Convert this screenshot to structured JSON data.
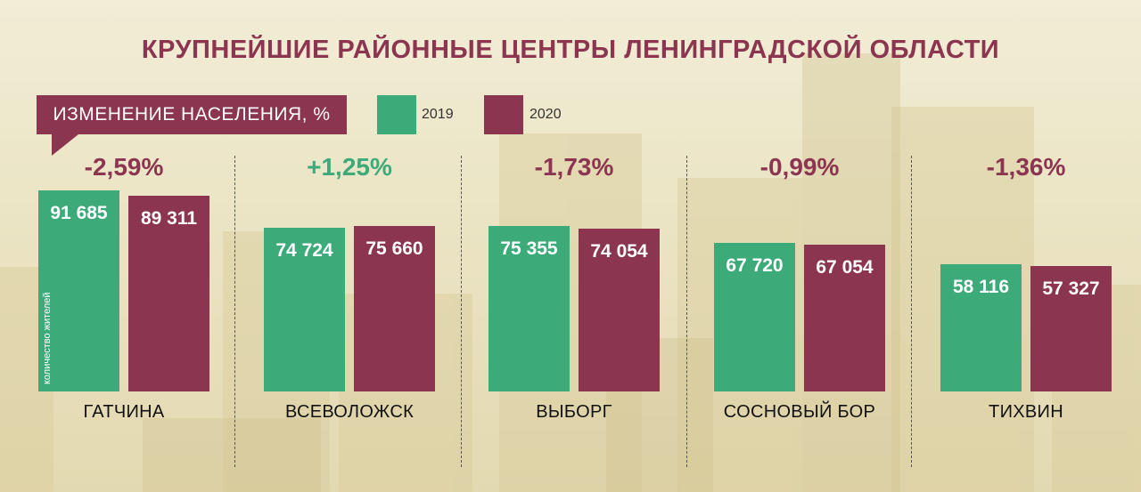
{
  "colors": {
    "y2019": "#3daa7a",
    "y2020": "#8b3550",
    "pos": "#3daa7a",
    "neg": "#8b3550"
  },
  "title": "КРУПНЕЙШИЕ РАЙОННЫЕ ЦЕНТРЫ ЛЕНИНГРАДСКОЙ ОБЛАСТИ",
  "callout": "ИЗМЕНЕНИЕ НАСЕЛЕНИЯ, %",
  "legend": {
    "a": "2019",
    "b": "2020"
  },
  "ylabel": "количество жителей",
  "chart_data": {
    "type": "bar",
    "title": "КРУПНЕЙШИЕ РАЙОННЫЕ ЦЕНТРЫ ЛЕНИНГРАДСКОЙ ОБЛАСТИ",
    "ylabel": "количество жителей",
    "categories": [
      "ГАТЧИНА",
      "ВСЕВОЛОЖСК",
      "ВЫБОРГ",
      "СОСНОВЫЙ БОР",
      "ТИХВИН"
    ],
    "series": [
      {
        "name": "2019",
        "values": [
          91685,
          74724,
          75355,
          67720,
          58116
        ],
        "labels": [
          "91 685",
          "74 724",
          "75 355",
          "67 720",
          "58 116"
        ]
      },
      {
        "name": "2020",
        "values": [
          89311,
          75660,
          74054,
          67054,
          57327
        ],
        "labels": [
          "89 311",
          "75 660",
          "74 054",
          "67 054",
          "57 327"
        ]
      }
    ],
    "change_pct": [
      "-2,59%",
      "+1,25%",
      "-1,73%",
      "-0,99%",
      "-1,36%"
    ],
    "change_values": [
      -2.59,
      1.25,
      -1.73,
      -0.99,
      -1.36
    ],
    "grid": false,
    "legend": "top"
  }
}
